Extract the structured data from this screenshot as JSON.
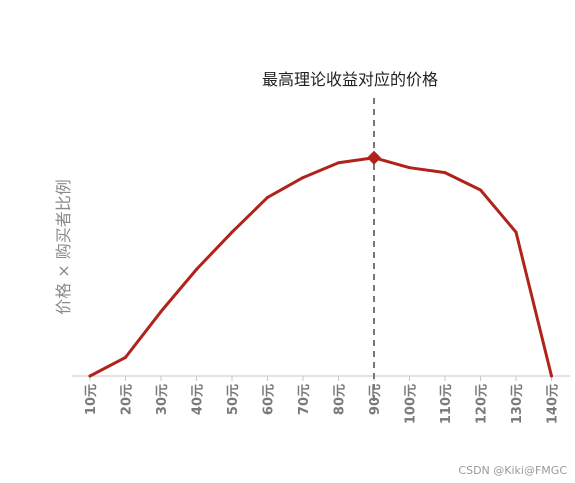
{
  "chart_data": {
    "type": "line",
    "title": "",
    "xlabel": "",
    "ylabel": "价格 × 购买者比例",
    "categories": [
      "10元",
      "20元",
      "30元",
      "40元",
      "50元",
      "60元",
      "70元",
      "80元",
      "90元",
      "100元",
      "110元",
      "120元",
      "130元",
      "140元"
    ],
    "series": [
      {
        "values": [
          0,
          7.5,
          26,
          43,
          58,
          72,
          80,
          86,
          88,
          84,
          82,
          75,
          58,
          0
        ],
        "color": "#b0231a"
      }
    ],
    "ylim": [
      0,
      100
    ],
    "grid": false,
    "legend": "none",
    "annotation": {
      "text": "最高理论收益对应的价格",
      "category": "90元",
      "line_style": "dashed",
      "line_color": "#777777",
      "marker": "diamond"
    }
  },
  "watermark": "CSDN @Kiki@FMGC"
}
